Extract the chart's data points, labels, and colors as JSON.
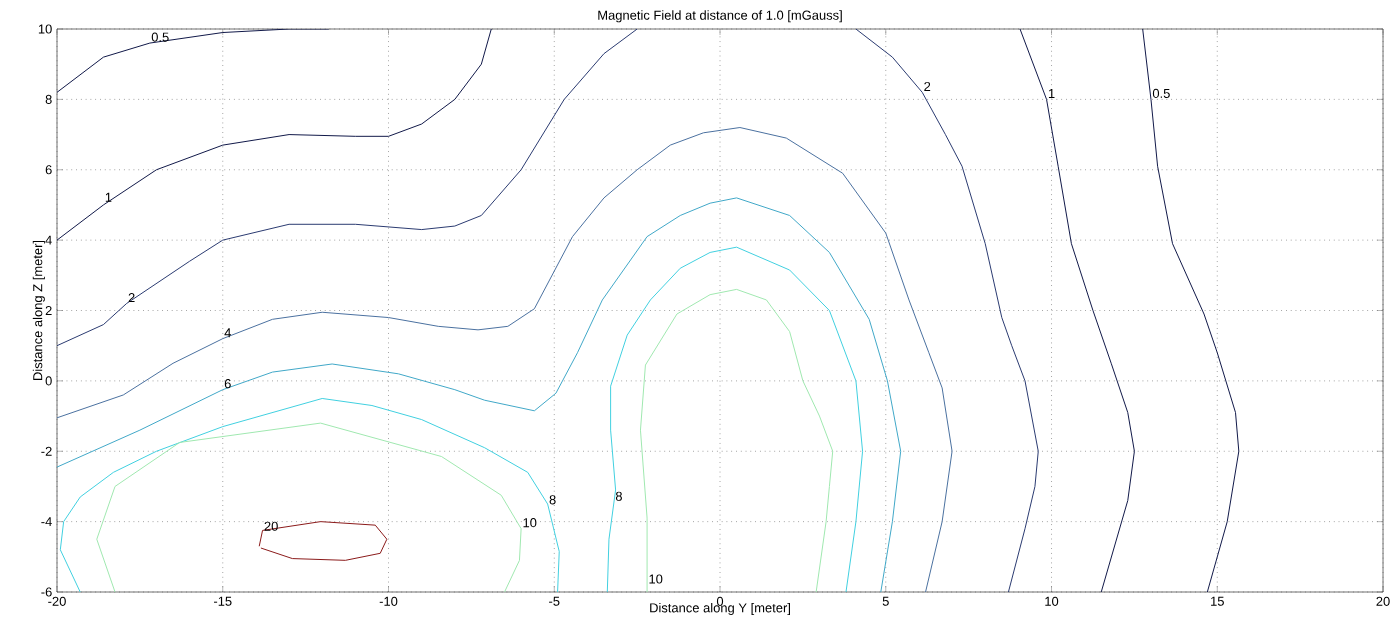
{
  "chart_data": {
    "type": "line",
    "title": "Magnetic Field at distance of 1.0 [mGauss]",
    "xlabel": "Distance along Y [meter]",
    "ylabel": "Distance along Z [meter]",
    "xlim": [
      -20,
      20
    ],
    "ylim": [
      -6,
      10
    ],
    "xticks": [
      -20,
      -15,
      -10,
      -5,
      0,
      5,
      10,
      15,
      20
    ],
    "yticks": [
      -6,
      -4,
      -2,
      0,
      2,
      4,
      6,
      8,
      10
    ],
    "grid": true,
    "series": [
      {
        "color": "#101848",
        "x": [
          -20,
          -18.6,
          -17.2,
          -15,
          -13,
          -11.8
        ],
        "values": [
          8.2,
          9.2,
          9.6,
          9.9,
          10.0,
          10.0
        ]
      },
      {
        "color": "#101848",
        "x": [
          -20,
          -18.6,
          -17,
          -15,
          -13,
          -11,
          -10,
          -9,
          -8,
          -7.2,
          -6.9
        ],
        "values": [
          4.0,
          5.0,
          6.0,
          6.7,
          7.0,
          6.95,
          6.95,
          7.3,
          8.0,
          9.0,
          10
        ]
      },
      {
        "color": "#2a3a70",
        "x": [
          -20,
          -18.6,
          -17.9,
          -16,
          -15,
          -13,
          -11,
          -9,
          -8,
          -7.2,
          -6,
          -4.7,
          -3.5,
          -2.5
        ],
        "values": [
          1.0,
          1.6,
          2.2,
          3.4,
          4.0,
          4.45,
          4.45,
          4.3,
          4.4,
          4.7,
          6.0,
          8.0,
          9.3,
          10
        ]
      },
      {
        "color": "#2a3a70",
        "x": [
          4.1,
          5.2,
          6.1,
          6.8,
          7.3,
          8.0,
          8.5,
          8.8,
          9.2,
          9.6,
          9.5,
          9.2,
          8.7
        ],
        "values": [
          10,
          9.2,
          8.2,
          7.0,
          6.1,
          3.9,
          1.8,
          1.0,
          0,
          -2.0,
          -3.0,
          -4.2,
          -6
        ]
      },
      {
        "color": "#101848",
        "x": [
          9.05,
          9.85,
          10.2,
          10.6,
          11.25,
          11.8,
          12.3,
          12.5,
          12.3,
          11.5
        ],
        "values": [
          10,
          8.0,
          6.1,
          3.9,
          2.0,
          0.5,
          -0.9,
          -2.0,
          -3.4,
          -6
        ]
      },
      {
        "color": "#101848",
        "x": [
          12.75,
          13.0,
          13.2,
          13.65,
          14.6,
          15.0,
          15.55,
          15.65,
          15.3,
          14.7
        ],
        "values": [
          10,
          8.0,
          6.1,
          3.9,
          1.9,
          0.8,
          -0.9,
          -2.0,
          -4.0,
          -6
        ]
      },
      {
        "color": "#4a70a0",
        "x": [
          -20,
          -18,
          -16.5,
          -15,
          -13.5,
          -12,
          -10,
          -8.5,
          -7.3,
          -6.4,
          -5.6,
          -4.45,
          -3.5,
          -2.5,
          -1.5,
          -0.5,
          0.6,
          2,
          3.7,
          5.0,
          5.7,
          6.3,
          6.7,
          7.0,
          6.7,
          6.2
        ],
        "values": [
          -1.05,
          -0.4,
          0.5,
          1.2,
          1.75,
          1.95,
          1.8,
          1.55,
          1.45,
          1.55,
          2.05,
          4.1,
          5.2,
          6.0,
          6.7,
          7.05,
          7.2,
          6.9,
          5.9,
          4.2,
          2.3,
          0.8,
          -0.2,
          -2.0,
          -4.0,
          -6
        ]
      },
      {
        "color": "#40a8c8",
        "x": [
          -20,
          -17.5,
          -15,
          -13.5,
          -11.7,
          -9.7,
          -8,
          -7.1,
          -5.6,
          -4.95,
          -4.3,
          -3.55,
          -2.2,
          -1.2,
          -0.3,
          0.5,
          2.1,
          3.3,
          4.5,
          5.05,
          5.45,
          5.2,
          4.85
        ],
        "values": [
          -2.45,
          -1.4,
          -0.25,
          0.25,
          0.48,
          0.2,
          -0.25,
          -0.55,
          -0.85,
          -0.35,
          0.8,
          2.3,
          4.1,
          4.7,
          5.05,
          5.2,
          4.7,
          3.65,
          1.75,
          0,
          -2.0,
          -4.0,
          -6
        ]
      },
      {
        "color": "#40d0e0",
        "x": [
          -19.3,
          -19.9,
          -19.8,
          -19.3,
          -18.3,
          -17,
          -15,
          -12,
          -10.5,
          -9,
          -7.1,
          -5.8,
          -5.2,
          -4.85,
          -4.9
        ],
        "values": [
          -6,
          -4.8,
          -4.0,
          -3.3,
          -2.6,
          -2.0,
          -1.3,
          -0.5,
          -0.7,
          -1.1,
          -1.9,
          -2.6,
          -3.5,
          -4.85,
          -6
        ]
      },
      {
        "color": "#40d0e0",
        "x": [
          -3.4,
          -3.35,
          -3.15,
          -3.3,
          -3.3,
          -2.8,
          -2.1,
          -1.2,
          -0.3,
          0.5,
          2.1,
          3.3,
          4.1,
          4.3,
          4.1,
          3.8
        ],
        "values": [
          -6,
          -4.5,
          -3.1,
          -1.4,
          -0.15,
          1.3,
          2.3,
          3.2,
          3.65,
          3.8,
          3.15,
          2.0,
          0,
          -2.0,
          -4.0,
          -6
        ]
      },
      {
        "color": "#a0e8b0",
        "x": [
          -18.25,
          -18.8,
          -18.25,
          -16.3,
          -12.05,
          -8.4,
          -6.6,
          -6.0,
          -6.05,
          -6.5
        ],
        "values": [
          -6,
          -4.5,
          -3.0,
          -1.75,
          -1.2,
          -2.15,
          -3.25,
          -4.2,
          -5.1,
          -6
        ]
      },
      {
        "color": "#a0e8b0",
        "x": [
          -2.2,
          -2.2,
          -2.4,
          -2.25,
          -1.3,
          -0.3,
          0.5,
          1.4,
          2.1,
          2.5,
          3.0,
          3.4,
          3.3,
          3.2,
          2.9
        ],
        "values": [
          -6,
          -3.9,
          -1.4,
          0.45,
          1.9,
          2.45,
          2.6,
          2.3,
          1.4,
          0,
          -1.0,
          -2.0,
          -3.0,
          -4.0,
          -6
        ]
      },
      {
        "color": "#8b1a1a",
        "x": [
          -13.9,
          -13.8,
          -12.05,
          -10.4,
          -10.05,
          -10.25,
          -11.3,
          -12.9,
          -13.85
        ],
        "values": [
          -4.7,
          -4.25,
          -4.0,
          -4.1,
          -4.5,
          -4.9,
          -5.1,
          -5.05,
          -4.75
        ]
      }
    ],
    "annotations": [
      {
        "text": "0.5",
        "x": -17.2,
        "y": 9.6
      },
      {
        "text": "1",
        "x": -18.6,
        "y": 5.05
      },
      {
        "text": "2",
        "x": -17.9,
        "y": 2.2
      },
      {
        "text": "4",
        "x": -15,
        "y": 1.2
      },
      {
        "text": "6",
        "x": -15,
        "y": -0.25
      },
      {
        "text": "20",
        "x": -13.8,
        "y": -4.3
      },
      {
        "text": "10",
        "x": -6.0,
        "y": -4.2
      },
      {
        "text": "8",
        "x": -5.2,
        "y": -3.55
      },
      {
        "text": "8",
        "x": -3.2,
        "y": -3.45
      },
      {
        "text": "10",
        "x": -2.2,
        "y": -5.8
      },
      {
        "text": "2",
        "x": 6.1,
        "y": 8.2
      },
      {
        "text": "1",
        "x": 9.85,
        "y": 8.0
      },
      {
        "text": "0.5",
        "x": 13.0,
        "y": 8.0
      }
    ]
  }
}
